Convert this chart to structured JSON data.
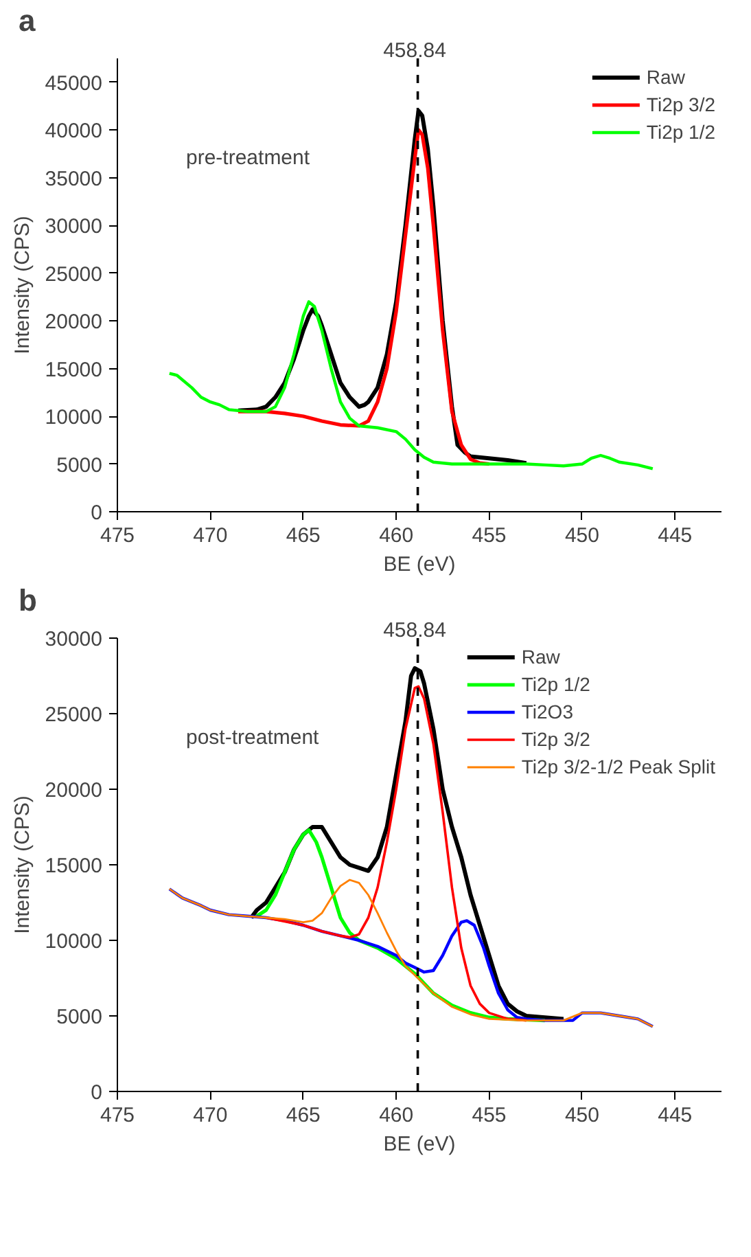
{
  "chart_data": [
    {
      "type": "line",
      "xlabel": "BE (eV)",
      "ylabel": "Intensity (CPS)",
      "xlim": [
        475,
        442.5
      ],
      "ylim": [
        0,
        47500
      ],
      "xticks": [
        475,
        470,
        465,
        460,
        455,
        450,
        445
      ],
      "yticks": [
        0,
        5000,
        10000,
        15000,
        20000,
        25000,
        30000,
        35000,
        40000,
        45000
      ],
      "grid": false,
      "legend": "top right",
      "marker": "none",
      "line_style": "solid",
      "annotations": [
        "a",
        "pre-treatment"
      ],
      "ref_lines": [
        {
          "axis": "x",
          "value": 458.84,
          "label": "458.84",
          "color": "#000000",
          "line_style": "dashed"
        }
      ],
      "series": [
        {
          "name": "Raw",
          "color": "#000000",
          "x": [
            468.5,
            467.5,
            467,
            466.5,
            466,
            465.5,
            465,
            464.7,
            464.5,
            464.2,
            464,
            463.5,
            463,
            462.5,
            462,
            461.7,
            461.5,
            461,
            460.5,
            460,
            459.5,
            459,
            458.8,
            458.6,
            458.3,
            458,
            457.5,
            457,
            456.7,
            456.3,
            456,
            455,
            454,
            453
          ],
          "values": [
            10600,
            10700,
            11000,
            12000,
            13500,
            16000,
            19000,
            20500,
            21200,
            20500,
            19500,
            16500,
            13500,
            12000,
            11000,
            11200,
            11500,
            13000,
            16500,
            22000,
            30000,
            39000,
            42000,
            41500,
            38000,
            32000,
            20000,
            11000,
            7000,
            6200,
            5800,
            5600,
            5400,
            5100
          ]
        },
        {
          "name": "Ti2p 3/2",
          "color": "#ff0000",
          "x": [
            468.5,
            467,
            466,
            465,
            464,
            463,
            462,
            461.5,
            461,
            460.5,
            460,
            459.5,
            459,
            458.8,
            458.6,
            458.3,
            458,
            457.5,
            457,
            456.5,
            456,
            455.5,
            455
          ],
          "values": [
            10500,
            10500,
            10300,
            10000,
            9500,
            9100,
            9000,
            9500,
            11500,
            15000,
            21000,
            29000,
            37000,
            40000,
            39500,
            36000,
            30000,
            19000,
            10500,
            7000,
            5500,
            5100,
            5000
          ]
        },
        {
          "name": "Ti2p 1/2",
          "color": "#00ff00",
          "x": [
            472.2,
            471.8,
            471,
            470.5,
            470,
            469.5,
            469,
            468.5,
            468,
            467,
            466.5,
            466,
            465.5,
            465,
            464.7,
            464.4,
            464,
            463.5,
            463,
            462.5,
            462,
            461,
            460,
            459.5,
            459,
            458.5,
            458,
            457,
            455,
            453,
            452,
            451,
            450,
            449.5,
            449,
            448.5,
            448,
            447,
            446.2
          ],
          "values": [
            14500,
            14300,
            13000,
            12000,
            11500,
            11200,
            10700,
            10600,
            10500,
            10500,
            11000,
            13000,
            16500,
            20500,
            22000,
            21500,
            19000,
            15000,
            11500,
            9800,
            9000,
            8800,
            8400,
            7600,
            6500,
            5700,
            5200,
            5000,
            5000,
            5000,
            4900,
            4800,
            5000,
            5600,
            5900,
            5600,
            5200,
            4900,
            4500
          ]
        }
      ]
    },
    {
      "type": "line",
      "xlabel": "BE (eV)",
      "ylabel": "Intensity (CPS)",
      "xlim": [
        475,
        442.5
      ],
      "ylim": [
        0,
        30000
      ],
      "xticks": [
        475,
        470,
        465,
        460,
        455,
        450,
        445
      ],
      "yticks": [
        0,
        5000,
        10000,
        15000,
        20000,
        25000,
        30000
      ],
      "grid": false,
      "legend": "top right",
      "marker": "none",
      "line_style": "solid",
      "annotations": [
        "b",
        "post-treatment"
      ],
      "ref_lines": [
        {
          "axis": "x",
          "value": 458.84,
          "label": "458.84",
          "color": "#000000",
          "line_style": "dashed"
        }
      ],
      "series": [
        {
          "name": "Raw",
          "color": "#000000",
          "x": [
            467.8,
            467.5,
            467,
            466.5,
            466,
            465.5,
            465,
            464.5,
            464,
            463.5,
            463,
            462.5,
            462,
            461.5,
            461,
            460.5,
            460,
            459.5,
            459.2,
            459,
            458.7,
            458.5,
            458,
            457.5,
            457,
            456.5,
            456,
            455.5,
            455,
            454.5,
            454,
            453.5,
            453,
            452,
            451
          ],
          "values": [
            11500,
            12000,
            12500,
            13500,
            14500,
            16000,
            17000,
            17500,
            17500,
            16500,
            15500,
            15000,
            14800,
            14600,
            15500,
            17500,
            21000,
            24500,
            27500,
            28000,
            27800,
            27000,
            24000,
            20000,
            17500,
            15500,
            13000,
            11000,
            9000,
            7000,
            5800,
            5300,
            5000,
            4900,
            4800
          ]
        },
        {
          "name": "Ti2p 1/2",
          "color": "#00ff00",
          "x": [
            467.5,
            467,
            466.5,
            466,
            465.5,
            465,
            464.7,
            464.3,
            464,
            463.5,
            463,
            462.5,
            462,
            461,
            460,
            459,
            458,
            457,
            456,
            455,
            454,
            452
          ],
          "values": [
            11600,
            12000,
            13000,
            14500,
            16000,
            17000,
            17300,
            16500,
            15500,
            13500,
            11500,
            10500,
            10000,
            9500,
            8800,
            7800,
            6500,
            5700,
            5200,
            4900,
            4800,
            4700
          ]
        },
        {
          "name": "Ti2O3",
          "color": "#0000ff",
          "x": [
            472.2,
            471.5,
            470.5,
            470,
            469,
            468,
            467,
            466,
            465,
            464,
            463,
            462,
            461,
            460,
            459.5,
            459,
            458.5,
            458,
            457.5,
            457,
            456.5,
            456.2,
            455.8,
            455.3,
            455,
            454.5,
            454,
            453.5,
            453,
            452,
            450.5,
            450,
            449,
            448,
            447,
            446.2
          ],
          "values": [
            13400,
            12800,
            12300,
            12000,
            11700,
            11600,
            11500,
            11300,
            11000,
            10600,
            10300,
            10000,
            9600,
            9000,
            8500,
            8200,
            7900,
            8000,
            9000,
            10300,
            11200,
            11300,
            11000,
            9500,
            8300,
            6500,
            5400,
            4900,
            4800,
            4700,
            4700,
            5200,
            5200,
            5000,
            4800,
            4300
          ]
        },
        {
          "name": "Ti2p 3/2",
          "color": "#ff0000",
          "x": [
            467,
            465,
            464,
            463,
            462.5,
            462,
            461.5,
            461,
            460.5,
            460,
            459.5,
            459,
            458.8,
            458.5,
            458,
            457.5,
            457,
            456.5,
            456,
            455.5,
            455,
            454,
            453
          ],
          "values": [
            11500,
            11000,
            10600,
            10300,
            10200,
            10400,
            11500,
            13500,
            16500,
            20000,
            24000,
            26700,
            26800,
            26000,
            23000,
            18500,
            13500,
            9500,
            7000,
            5800,
            5200,
            4800,
            4700
          ]
        },
        {
          "name": "Ti2p 3/2-1/2 Peak Split",
          "color": "#ff8000",
          "x": [
            472.2,
            471.5,
            470.5,
            470,
            469,
            468,
            467,
            466,
            465,
            464.5,
            464,
            463.5,
            463,
            462.5,
            462,
            461.5,
            461,
            460.5,
            460,
            459.5,
            459,
            458,
            457,
            456,
            455,
            453,
            451,
            450,
            449,
            448,
            447,
            446.2
          ],
          "values": [
            13400,
            12800,
            12300,
            12000,
            11700,
            11600,
            11500,
            11400,
            11200,
            11300,
            11800,
            12800,
            13600,
            14000,
            13800,
            13000,
            11800,
            10500,
            9300,
            8300,
            7700,
            6500,
            5600,
            5100,
            4800,
            4700,
            4700,
            5200,
            5200,
            5000,
            4800,
            4300
          ]
        }
      ]
    }
  ]
}
